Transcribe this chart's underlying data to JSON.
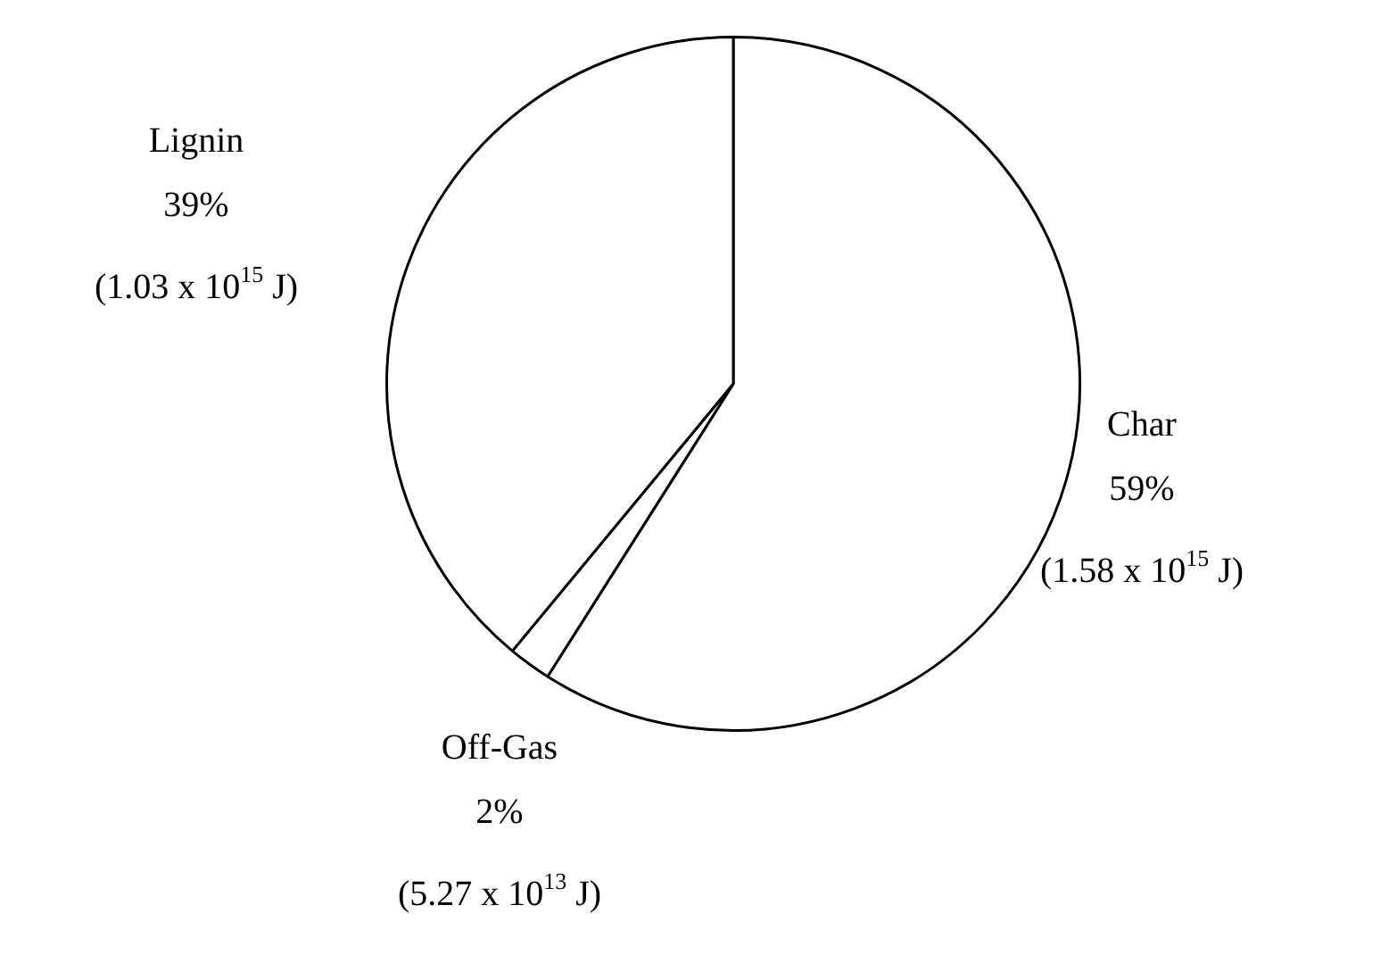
{
  "chart_data": {
    "type": "pie",
    "categories": [
      "Char",
      "Off-Gas",
      "Lignin"
    ],
    "values": [
      59,
      2,
      39
    ],
    "colors": [
      "#ffffff",
      "#ffffff",
      "#ffffff"
    ],
    "value_labels": [
      "59%",
      "2%",
      "39%"
    ],
    "annotations": [
      "(1.58 x 10$^{15}$ J)",
      "(5.27 x 10$^{13}$ J)",
      "(1.03 x 10$^{15}$ J)"
    ],
    "legend": false
  }
}
